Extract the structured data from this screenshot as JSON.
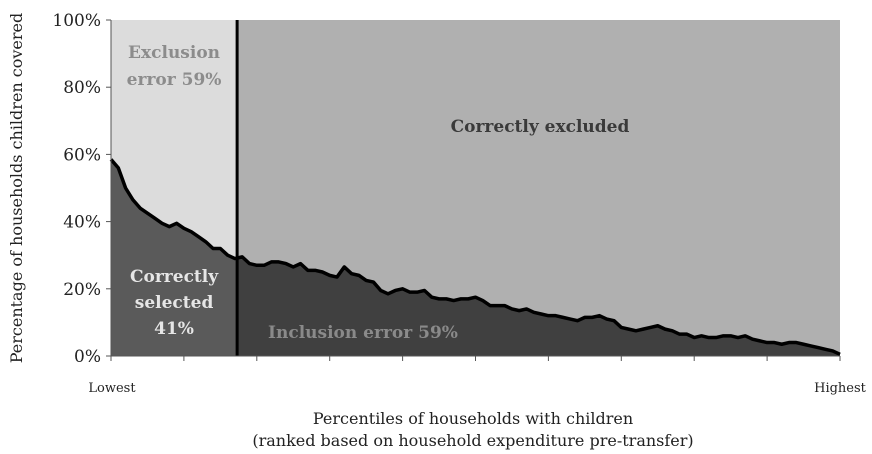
{
  "chart_data": {
    "type": "area",
    "title": "",
    "ylabel": "Percentage of households children covered",
    "xlabel_line1": "Percentiles of households with children",
    "xlabel_line2": "(ranked based on household expenditure pre-transfer)",
    "x_tick_labels": {
      "left": "Lowest",
      "right": "Highest"
    },
    "y_ticks": [
      "0%",
      "20%",
      "40%",
      "60%",
      "80%",
      "100%"
    ],
    "ylim": [
      0,
      100
    ],
    "xlim": [
      0,
      100
    ],
    "cutoff_percentile": 17.3,
    "region_labels": {
      "exclusion_error": [
        "Exclusion",
        "error 59%"
      ],
      "correctly_excluded": "Correctly excluded",
      "correctly_selected": [
        "Correctly",
        "selected",
        "41%"
      ],
      "inclusion_error": "Inclusion error 59%"
    },
    "colors": {
      "exclusion_bg": "#dcdcdc",
      "correctly_excluded_bg": "#b0b0b0",
      "correctly_selected_fill": "#5a5a5a",
      "inclusion_fill": "#404040",
      "curve": "#000000",
      "exclusion_text": "#8c8c8c",
      "correctly_excluded_text": "#3a3a3a",
      "selected_text": "#e6e6e6",
      "inclusion_text": "#8a8a8a"
    },
    "series": [
      {
        "x": [
          0,
          1,
          2,
          3,
          4,
          5,
          6,
          7,
          8,
          9,
          10,
          11,
          12,
          13,
          14,
          15,
          16,
          17,
          18,
          19,
          20,
          21,
          22,
          23,
          24,
          25,
          26,
          27,
          28,
          29,
          30,
          31,
          32,
          33,
          34,
          35,
          36,
          37,
          38,
          39,
          40,
          41,
          42,
          43,
          44,
          45,
          46,
          47,
          48,
          49,
          50,
          51,
          52,
          53,
          54,
          55,
          56,
          57,
          58,
          59,
          60,
          61,
          62,
          63,
          64,
          65,
          66,
          67,
          68,
          69,
          70,
          71,
          72,
          73,
          74,
          75,
          76,
          77,
          78,
          79,
          80,
          81,
          82,
          83,
          84,
          85,
          86,
          87,
          88,
          89,
          90,
          91,
          92,
          93,
          94,
          95,
          96,
          97,
          98,
          99,
          100
        ],
        "values": [
          58.5,
          56,
          50,
          46.5,
          44,
          42.5,
          41,
          39.5,
          38.5,
          39.5,
          38,
          37,
          35.5,
          34,
          32,
          32,
          30,
          29,
          29.5,
          27.5,
          27,
          27,
          28,
          28,
          27.5,
          26.5,
          27.5,
          25.5,
          25.5,
          25,
          24,
          23.5,
          26.5,
          24.5,
          24,
          22.5,
          22,
          19.5,
          18.5,
          19.5,
          20,
          19,
          19,
          19.5,
          17.5,
          17,
          17,
          16.5,
          17,
          17,
          17.5,
          16.5,
          15,
          15,
          15,
          14,
          13.5,
          14,
          13,
          12.5,
          12,
          12,
          11.5,
          11,
          10.5,
          11.5,
          11.5,
          12,
          11,
          10.5,
          8.5,
          8,
          7.5,
          8,
          8.5,
          9,
          8,
          7.5,
          6.5,
          6.5,
          5.5,
          6,
          5.5,
          5.5,
          6,
          6,
          5.5,
          6,
          5,
          4.5,
          4,
          4,
          3.5,
          4,
          4,
          3.5,
          3,
          2.5,
          2,
          1.5,
          0.5
        ]
      }
    ]
  }
}
